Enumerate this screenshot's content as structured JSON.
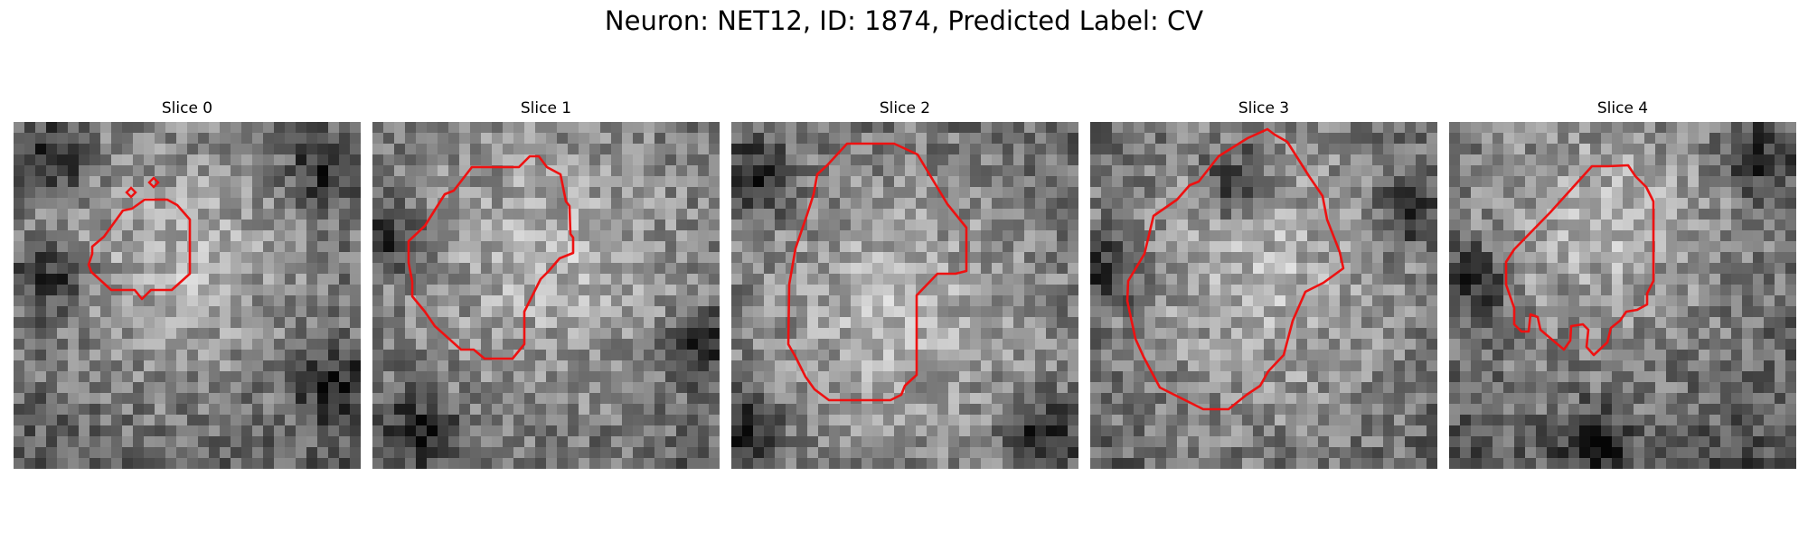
{
  "figure": {
    "title": "Neuron: NET12, ID: 1874, Predicted Label: CV"
  },
  "slices": [
    {
      "label": "Slice 0",
      "tone": "blob-center"
    },
    {
      "label": "Slice 1",
      "tone": "blob-center"
    },
    {
      "label": "Slice 2",
      "tone": "blob-center"
    },
    {
      "label": "Slice 3",
      "tone": "blob-center"
    },
    {
      "label": "Slice 4",
      "tone": "blob-upper"
    }
  ],
  "colors": {
    "contour": "#ee1111",
    "background": "#ffffff"
  },
  "image_style": "grayscale-pixel-grid-32x32",
  "contour_style": "red-outline"
}
